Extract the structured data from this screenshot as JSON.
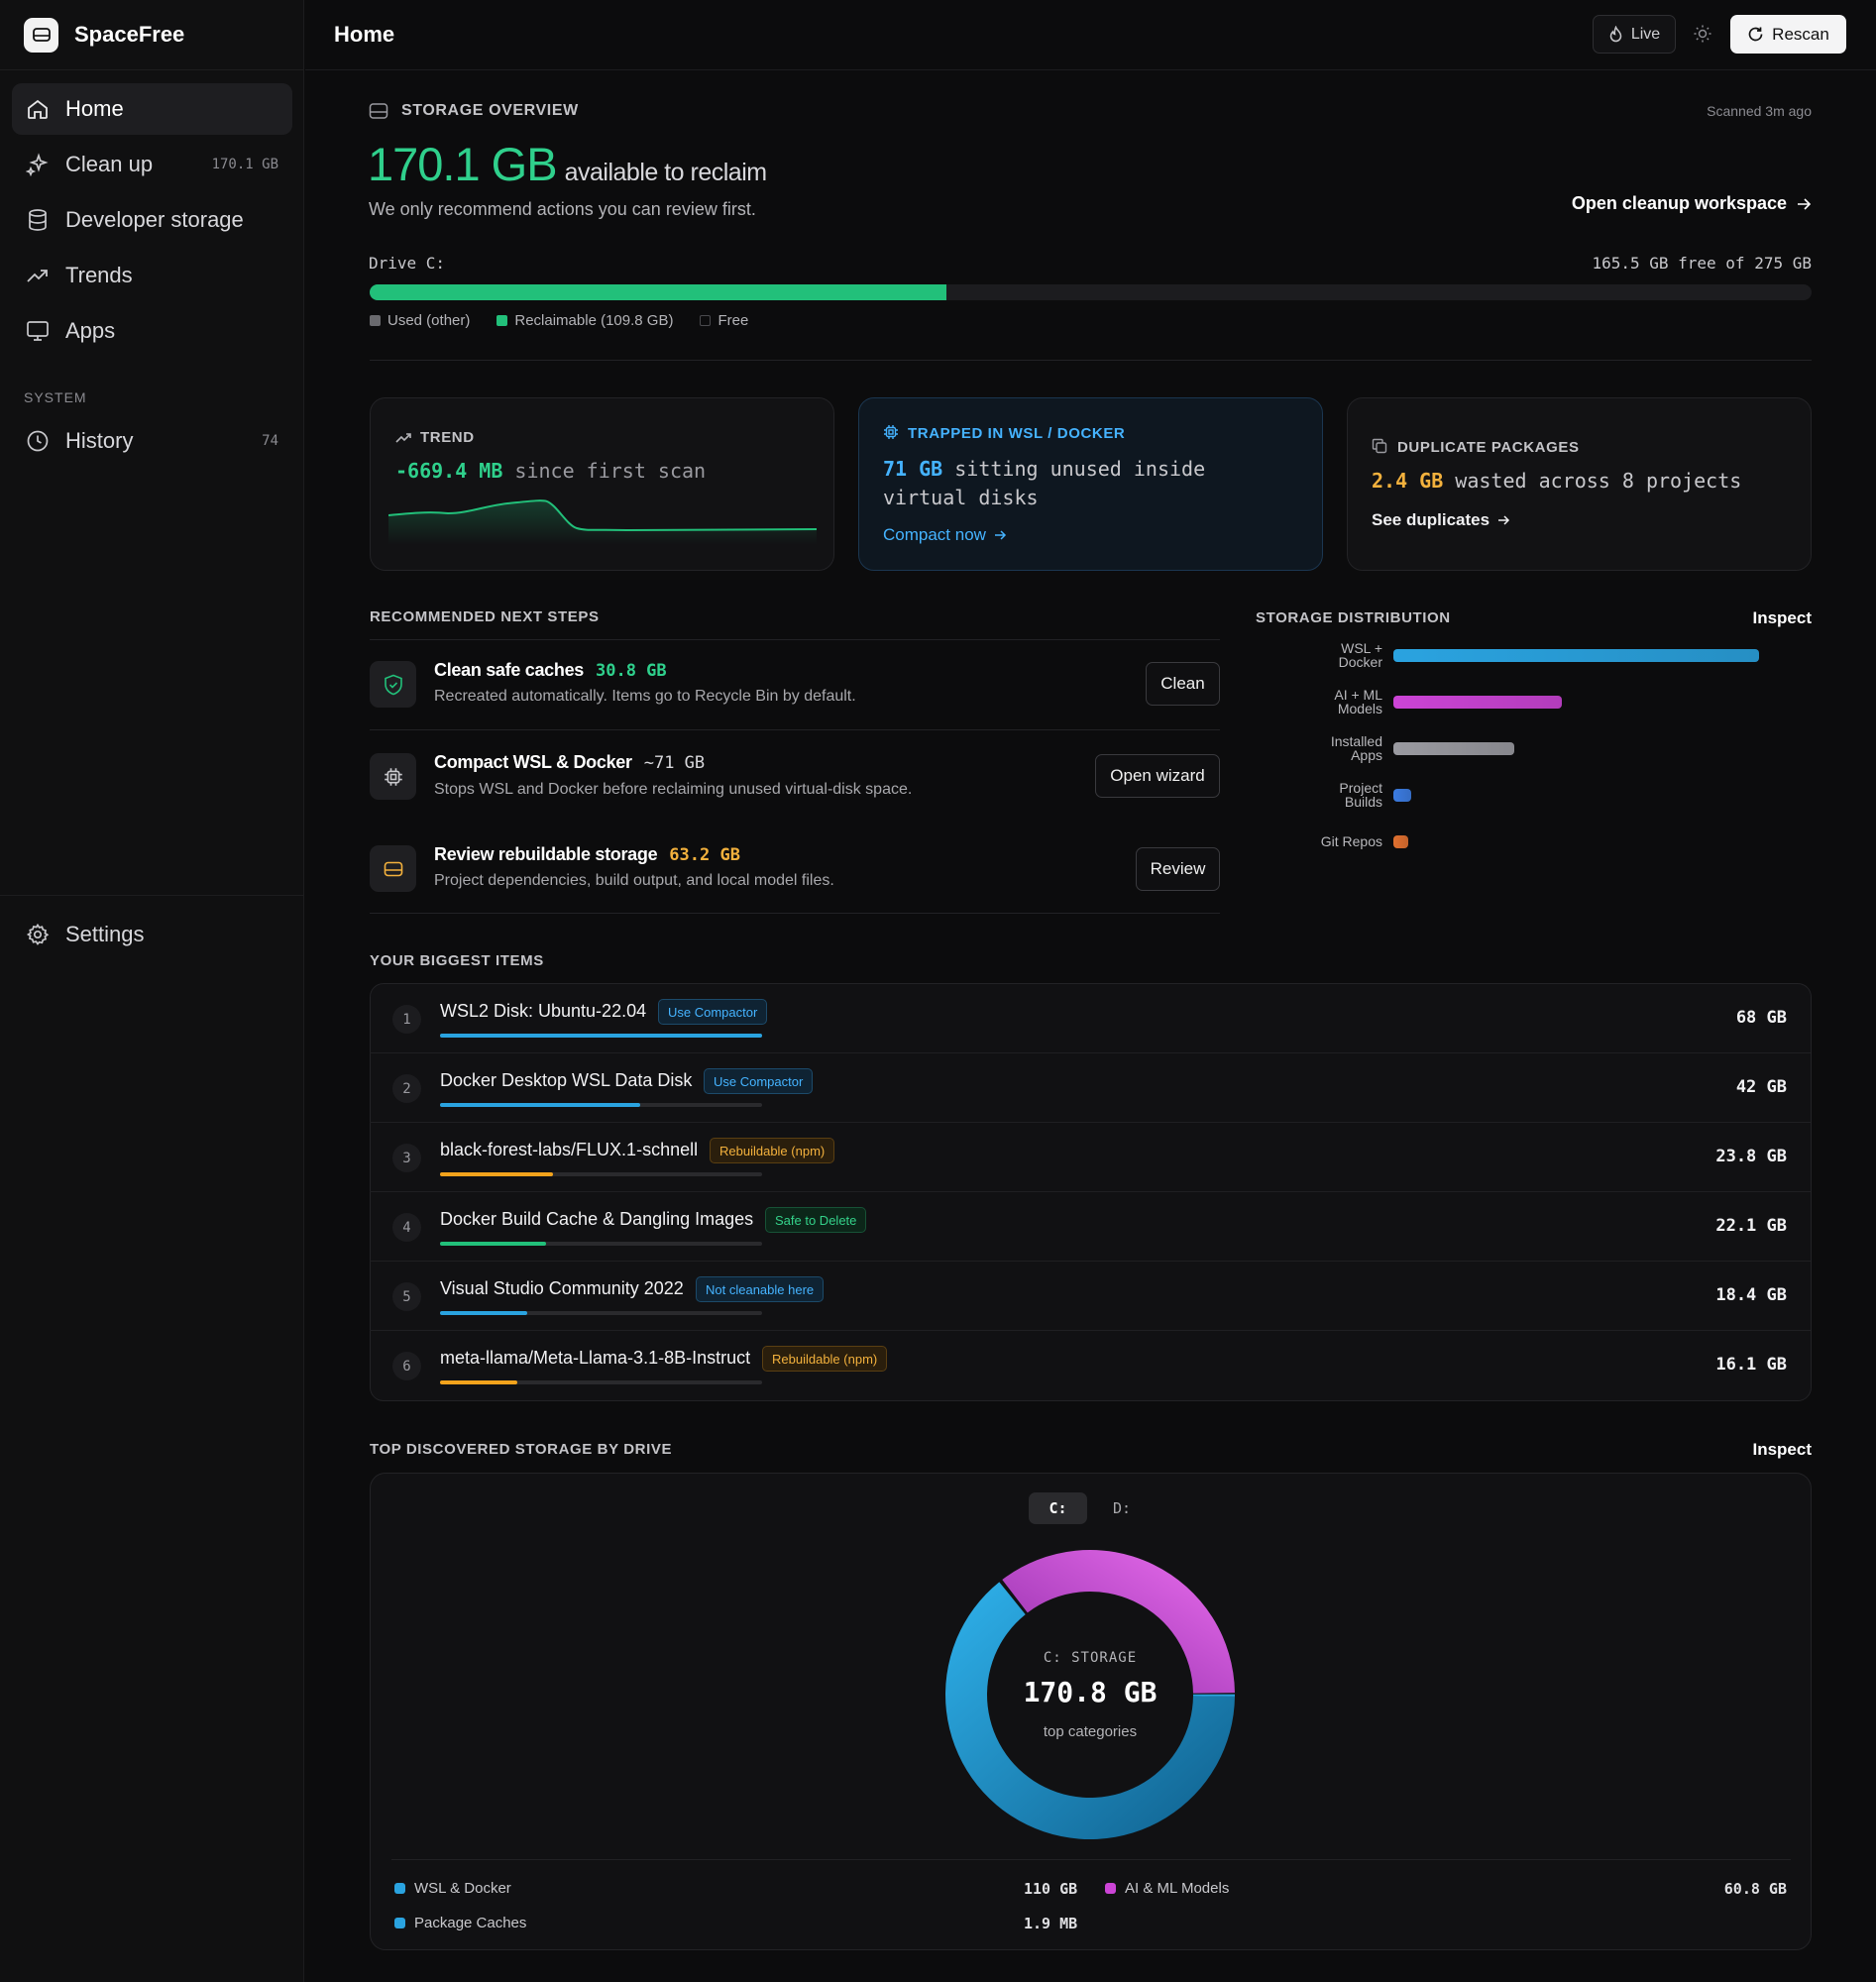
{
  "app": {
    "name": "SpaceFree"
  },
  "sidebar": {
    "items": [
      {
        "label": "Home",
        "meta": ""
      },
      {
        "label": "Clean up",
        "meta": "170.1 GB"
      },
      {
        "label": "Developer storage",
        "meta": ""
      },
      {
        "label": "Trends",
        "meta": ""
      },
      {
        "label": "Apps",
        "meta": ""
      }
    ],
    "system_label": "SYSTEM",
    "history": {
      "label": "History",
      "meta": "74"
    },
    "settings": {
      "label": "Settings"
    }
  },
  "header": {
    "title": "Home",
    "live_label": "Live",
    "rescan_label": "Rescan"
  },
  "overview": {
    "section": "STORAGE OVERVIEW",
    "scanned": "Scanned 3m ago",
    "amount": "170.1 GB",
    "amount_suffix": "available to reclaim",
    "subtitle": "We only recommend actions you can review first.",
    "workspace_link": "Open cleanup workspace",
    "drive_label": "Drive C:",
    "drive_free": "165.5 GB free of 275 GB",
    "reclaimable_fraction": 0.4,
    "legend": [
      "Used (other)",
      "Reclaimable (109.8 GB)",
      "Free"
    ]
  },
  "cards": {
    "trend": {
      "label": "TREND",
      "value": "-669.4 MB",
      "rest": "since first scan"
    },
    "wsl": {
      "label": "TRAPPED IN WSL / DOCKER",
      "value": "71 GB",
      "rest": "sitting unused inside",
      "rest2": "virtual disks",
      "link": "Compact now"
    },
    "dup": {
      "label": "DUPLICATE PACKAGES",
      "value": "2.4 GB",
      "rest": "wasted across 8 projects",
      "link": "See duplicates"
    }
  },
  "steps": {
    "section": "RECOMMENDED NEXT STEPS",
    "items": [
      {
        "title": "Clean safe caches",
        "amount": "30.8 GB",
        "desc": "Recreated automatically. Items go to Recycle Bin by default.",
        "action": "Clean"
      },
      {
        "title": "Compact WSL & Docker",
        "amount": "~71 GB",
        "desc": "Stops WSL and Docker before reclaiming unused virtual-disk space.",
        "action": "Open wizard"
      },
      {
        "title": "Review rebuildable storage",
        "amount": "63.2 GB",
        "desc": "Project dependencies, build output, and local model files.",
        "action": "Review"
      }
    ]
  },
  "distribution": {
    "section": "STORAGE DISTRIBUTION",
    "inspect": "Inspect",
    "items": [
      {
        "line1": "WSL +",
        "line2": "Docker",
        "fraction": 1.0,
        "color": "#2aa3e0"
      },
      {
        "line1": "AI + ML",
        "line2": "Models",
        "fraction": 0.46,
        "color": "#cc44d6"
      },
      {
        "line1": "Installed",
        "line2": "Apps",
        "fraction": 0.33,
        "color": "#9a9aa0"
      },
      {
        "line1": "Project",
        "line2": "Builds",
        "fraction": 0.05,
        "color": "#3b7be0"
      },
      {
        "line1": "Git Repos",
        "line2": "",
        "fraction": 0.04,
        "color": "#e0702f"
      }
    ]
  },
  "biggest": {
    "section": "YOUR BIGGEST ITEMS",
    "items": [
      {
        "rank": "1",
        "name": "WSL2 Disk: Ubuntu-22.04",
        "badge": "Use Compactor",
        "badge_kind": "blue",
        "size": "68 GB",
        "fraction": 1.0,
        "color": "#2aa3e0"
      },
      {
        "rank": "2",
        "name": "Docker Desktop WSL Data Disk",
        "badge": "Use Compactor",
        "badge_kind": "blue",
        "size": "42 GB",
        "fraction": 0.62,
        "color": "#2aa3e0"
      },
      {
        "rank": "3",
        "name": "black-forest-labs/FLUX.1-schnell",
        "badge": "Rebuildable (npm)",
        "badge_kind": "amber",
        "size": "23.8 GB",
        "fraction": 0.35,
        "color": "#f3a31c"
      },
      {
        "rank": "4",
        "name": "Docker Build Cache & Dangling Images",
        "badge": "Safe to Delete",
        "badge_kind": "green",
        "size": "22.1 GB",
        "fraction": 0.33,
        "color": "#22c07a"
      },
      {
        "rank": "5",
        "name": "Visual Studio Community 2022",
        "badge": "Not cleanable here",
        "badge_kind": "blue",
        "size": "18.4 GB",
        "fraction": 0.27,
        "color": "#2aa3e0"
      },
      {
        "rank": "6",
        "name": "meta-llama/Meta-Llama-3.1-8B-Instruct",
        "badge": "Rebuildable (npm)",
        "badge_kind": "amber",
        "size": "16.1 GB",
        "fraction": 0.24,
        "color": "#f3a31c"
      }
    ]
  },
  "drives": {
    "section": "TOP DISCOVERED STORAGE BY DRIVE",
    "inspect": "Inspect",
    "tabs": [
      "C:",
      "D:"
    ],
    "center_label": "C: STORAGE",
    "center_value": "170.8 GB",
    "center_sub": "top categories",
    "legend": [
      {
        "name": "WSL & Docker",
        "value": "110 GB",
        "color": "#2aa3e0"
      },
      {
        "name": "AI & ML Models",
        "value": "60.8 GB",
        "color": "#cc44d6"
      },
      {
        "name": "Package Caches",
        "value": "1.9 MB",
        "color": "#2aa3e0"
      }
    ]
  },
  "chart_data": {
    "type": "pie",
    "categories": [
      "WSL & Docker",
      "AI & ML Models",
      "Package Caches"
    ],
    "values": [
      110,
      60.8,
      0.0019
    ],
    "units": "GB",
    "title": "C: STORAGE"
  }
}
